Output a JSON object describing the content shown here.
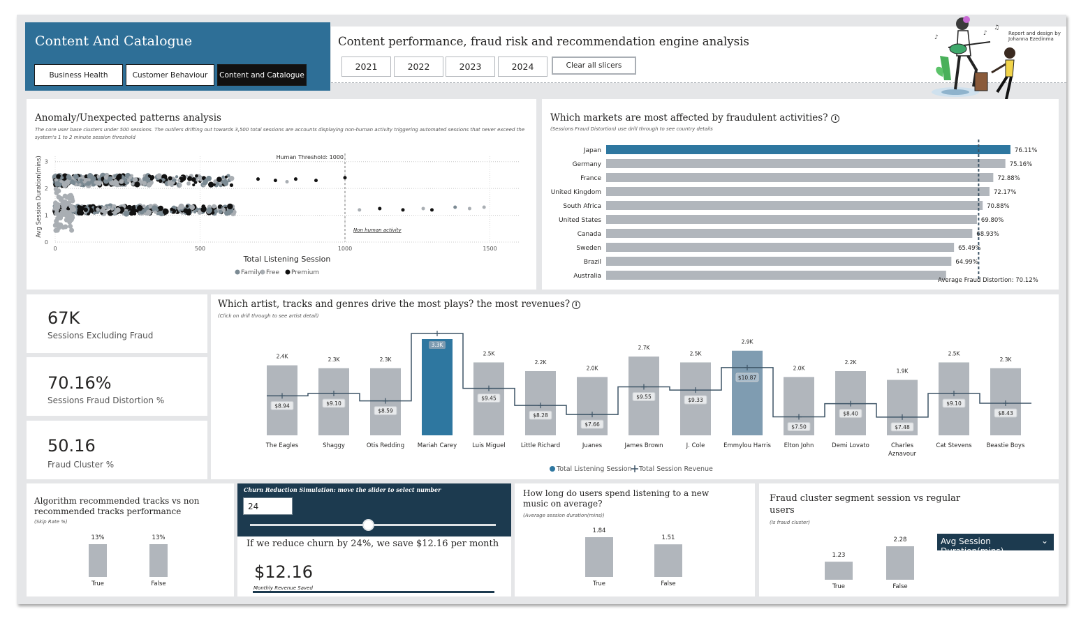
{
  "header": {
    "brand_title": "Content And Catalogue",
    "nav": [
      "Business Health",
      "Customer Behaviour",
      "Content and Catalogue"
    ],
    "subtitle": "Content performance, fraud risk and recommendation engine analysis",
    "years": [
      "2021",
      "2022",
      "2023",
      "2024"
    ],
    "clear": "Clear all slicers",
    "credit": [
      "Report and design by",
      "Johanna Ezedinma"
    ]
  },
  "colors": {
    "accent": "#2e6f97",
    "highlight_bar": "#2e77a0",
    "grey_bar": "#b1b6bc",
    "dark_panel": "#1c3a4f",
    "family": "#7b8a93",
    "free": "#a9aeb3",
    "premium": "#111111"
  },
  "anomaly": {
    "title": "Anomaly/Unexpected patterns analysis",
    "subtitle": "The core user base clusters under 500 sessions. The outliers drifting out towards 3,500 total sessions are accounts displaying non-human activity triggering automated sessions that never exceed the system's 1 to 2 minute session threshold",
    "threshold_label": "Human Threshold: 1000",
    "non_human_label": "Non human activity",
    "legend": [
      "Family",
      "Free",
      "Premium"
    ]
  },
  "markets": {
    "title": "Which markets are most affected by fraudulent activities?",
    "subtitle": "(Sessions Fraud Distortion)  use drill through to see country details",
    "avg_label": "Average Fraud Distortion: 70.12%"
  },
  "kpis": [
    {
      "value": "67K",
      "label": "Sessions Excluding Fraud"
    },
    {
      "value": "70.16%",
      "label": "Sessions Fraud Distortion %"
    },
    {
      "value": "50.16",
      "label": "Fraud Cluster %"
    }
  ],
  "artists": {
    "title": "Which artist, tracks and genres drive the most plays? the most revenues?",
    "subtitle": "(Click on drill through to see artist detail)",
    "legend": [
      "Total Listening Session",
      "Total Session Revenue"
    ]
  },
  "algo": {
    "title": "Algorithm recommended tracks vs non recommended tracks performance",
    "subtitle": "(Skip Rate %)"
  },
  "churn": {
    "header": "Churn Reduction Simulation: move the slider to select number",
    "input_value": "24",
    "slider_value": 24,
    "sentence": "If we reduce churn by 24%, we save $12.16 per month",
    "saved_value": "$12.16",
    "saved_label": "Monthly Revenue Saved"
  },
  "newmusic": {
    "title": "How long do users spend listening to a new music on average?",
    "subtitle": "(Average session duration(mins))"
  },
  "fraudseg": {
    "title": "Fraud cluster segment session vs regular users",
    "subtitle": "(Is fraud cluster)",
    "dropdown": "Avg Session Duration(mins)"
  },
  "chart_data": [
    {
      "id": "anomaly_scatter",
      "type": "scatter",
      "title": "Anomaly/Unexpected patterns analysis",
      "xlabel": "Total Listening Session",
      "ylabel": "Avg Session Duration(mins)",
      "xlim": [
        0,
        1600
      ],
      "ylim": [
        0,
        3.2
      ],
      "xticks": [
        0,
        500,
        1000,
        1500
      ],
      "yticks": [
        0,
        1,
        2,
        3
      ],
      "reference_x": 1000,
      "series_names": [
        "Family",
        "Free",
        "Premium"
      ],
      "grid": true,
      "outliers": [
        {
          "x": 700,
          "y": 2.35,
          "series": "Premium"
        },
        {
          "x": 760,
          "y": 2.3,
          "series": "Premium"
        },
        {
          "x": 800,
          "y": 2.25,
          "series": "Free"
        },
        {
          "x": 830,
          "y": 2.35,
          "series": "Premium"
        },
        {
          "x": 900,
          "y": 2.3,
          "series": "Premium"
        },
        {
          "x": 1000,
          "y": 2.4,
          "series": "Premium"
        },
        {
          "x": 1050,
          "y": 1.2,
          "series": "Free"
        },
        {
          "x": 1120,
          "y": 1.25,
          "series": "Premium"
        },
        {
          "x": 1200,
          "y": 1.2,
          "series": "Premium"
        },
        {
          "x": 1270,
          "y": 1.25,
          "series": "Free"
        },
        {
          "x": 1300,
          "y": 1.2,
          "series": "Premium"
        },
        {
          "x": 1380,
          "y": 1.3,
          "series": "Family"
        },
        {
          "x": 1430,
          "y": 1.25,
          "series": "Free"
        },
        {
          "x": 1480,
          "y": 1.3,
          "series": "Free"
        }
      ]
    },
    {
      "id": "markets_bar",
      "type": "bar",
      "orientation": "horizontal",
      "categories": [
        "Japan",
        "Germany",
        "France",
        "United Kingdom",
        "South Africa",
        "United States",
        "Canada",
        "Sweden",
        "Brazil",
        "Australia"
      ],
      "values": [
        76.11,
        75.16,
        72.88,
        72.17,
        70.88,
        69.8,
        68.93,
        65.49,
        64.99,
        64.0
      ],
      "labels": [
        "76.11%",
        "75.16%",
        "72.88%",
        "72.17%",
        "70.88%",
        "69.80%",
        "68.93%",
        "65.49%",
        "64.99%",
        ""
      ],
      "average": 70.12,
      "xlim": [
        0,
        80
      ]
    },
    {
      "id": "artists_combo",
      "type": "bar",
      "categories": [
        "The Eagles",
        "Shaggy",
        "Otis Redding",
        "Mariah Carey",
        "Luis Miguel",
        "Little Richard",
        "Juanes",
        "James Brown",
        "J. Cole",
        "Emmylou Harris",
        "Elton John",
        "Demi Lovato",
        "Charles Aznavour",
        "Cat Stevens",
        "Beastie Boys"
      ],
      "series": [
        {
          "name": "Total Listening Session",
          "values": [
            2400,
            2300,
            2300,
            3300,
            2500,
            2200,
            2000,
            2700,
            2500,
            2900,
            2000,
            2200,
            1900,
            2500,
            2300
          ],
          "labels": [
            "2.4K",
            "2.3K",
            "2.3K",
            "3.3K",
            "2.5K",
            "2.2K",
            "2.0K",
            "2.7K",
            "2.5K",
            "2.9K",
            "2.0K",
            "2.2K",
            "1.9K",
            "2.5K",
            "2.3K"
          ]
        },
        {
          "name": "Total Session Revenue",
          "values": [
            8.94,
            9.1,
            8.59,
            13.2,
            9.45,
            8.28,
            7.66,
            9.55,
            9.33,
            10.87,
            7.5,
            8.4,
            7.48,
            9.1,
            8.43
          ],
          "labels": [
            "$8.94",
            "$9.10",
            "$8.59",
            "",
            "$9.45",
            "$8.28",
            "$7.66",
            "$9.55",
            "$9.33",
            "$10.87",
            "$7.50",
            "$8.40",
            "$7.48",
            "$9.10",
            "$8.43"
          ]
        }
      ],
      "highlighted": [
        "Mariah Carey",
        "Emmylou Harris"
      ]
    },
    {
      "id": "algo_bar",
      "type": "bar",
      "categories": [
        "True",
        "False"
      ],
      "values": [
        13,
        13
      ],
      "labels": [
        "13%",
        "13%"
      ]
    },
    {
      "id": "newmusic_bar",
      "type": "bar",
      "categories": [
        "True",
        "False"
      ],
      "values": [
        1.84,
        1.51
      ],
      "labels": [
        "1.84",
        "1.51"
      ]
    },
    {
      "id": "fraudseg_bar",
      "type": "bar",
      "categories": [
        "True",
        "False"
      ],
      "values": [
        1.23,
        2.28
      ],
      "labels": [
        "1.23",
        "2.28"
      ]
    }
  ]
}
